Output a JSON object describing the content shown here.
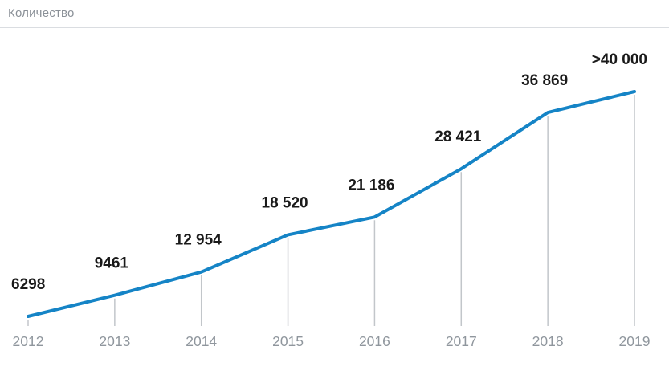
{
  "header": {
    "title": "Количество"
  },
  "colors": {
    "line": "#1584c6",
    "value_label": "#1a1a1a",
    "axis_text": "#8f969d",
    "tick_line": "#c2c6ca",
    "divider": "#dadde1",
    "title_text": "#8a9097",
    "background": "#ffffff"
  },
  "chart_data": {
    "type": "line",
    "title": "Количество",
    "categories": [
      "2012",
      "2013",
      "2014",
      "2015",
      "2016",
      "2017",
      "2018",
      "2019"
    ],
    "values": [
      6298,
      9461,
      12954,
      18520,
      21186,
      28421,
      36869,
      40000
    ],
    "labels": [
      "6298",
      "9461",
      "12 954",
      "18 520",
      "21 186",
      "28 421",
      "36 869",
      ">40 000"
    ],
    "xlabel": "",
    "ylabel": "Количество",
    "ylim": [
      6298,
      40000
    ],
    "grid": "vertical tick lines from each data point down to baseline",
    "legend_position": "none",
    "notes": "Last value is an open estimate: more than 40 000"
  }
}
